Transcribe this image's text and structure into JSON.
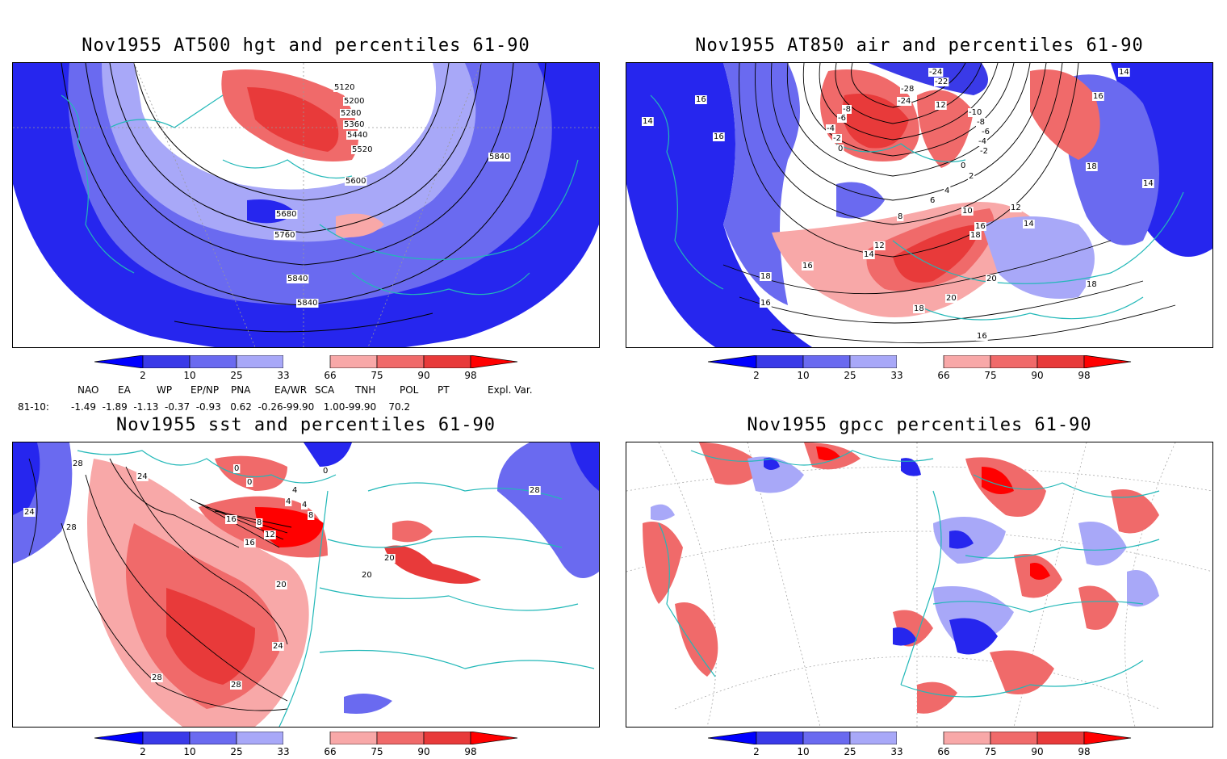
{
  "panels": [
    {
      "title": "Nov1955 AT500 hgt and percentiles 61-90",
      "contour_labels": [
        "5120",
        "5200",
        "5280",
        "5360",
        "5440",
        "5520",
        "5600",
        "5680",
        "5760",
        "5840",
        "5840",
        "5840"
      ]
    },
    {
      "title": "Nov1955 AT850 air and percentiles 61-90",
      "contour_labels": [
        "-24",
        "-22",
        "-28",
        "-24",
        "-8",
        "-6",
        "-4",
        "-2",
        "0",
        "12",
        "-10",
        "-8",
        "-6",
        "-4",
        "-2",
        "0",
        "2",
        "4",
        "6",
        "8",
        "10",
        "12",
        "14",
        "16",
        "18",
        "16",
        "14",
        "16",
        "16",
        "14",
        "12",
        "14",
        "16",
        "18",
        "20",
        "20",
        "18",
        "18",
        "16",
        "16",
        "18",
        "14"
      ]
    },
    {
      "title": "Nov1955 sst and percentiles 61-90",
      "contour_labels": [
        "28",
        "24",
        "24",
        "28",
        "0",
        "0",
        "0",
        "4",
        "4",
        "8",
        "8",
        "12",
        "16",
        "20",
        "20",
        "24",
        "28",
        "28",
        "28",
        "20",
        "16",
        "4"
      ]
    },
    {
      "title": "Nov1955 gpcc percentiles 61-90",
      "contour_labels": []
    }
  ],
  "colorbar": {
    "ticks": [
      "2",
      "10",
      "25",
      "33",
      "66",
      "75",
      "90",
      "98"
    ],
    "colors": [
      "#0000ff",
      "#3a3ae8",
      "#6a6af0",
      "#a8a8f8",
      "#ffffff",
      "#f8a8a8",
      "#f06a6a",
      "#e83a3a",
      "#ff0000"
    ]
  },
  "indices": {
    "header": [
      "NAO",
      "EA",
      "WP",
      "EP/NP",
      "PNA",
      "EA/WR",
      "SCA",
      "TNH",
      "POL",
      "PT",
      "Expl. Var."
    ],
    "row_label": "81-10:",
    "values_text": "-1.49  -1.89  -1.13  -0.37  -0.93   0.62  -0.26-99.90   1.00-99.90    70.2"
  }
}
